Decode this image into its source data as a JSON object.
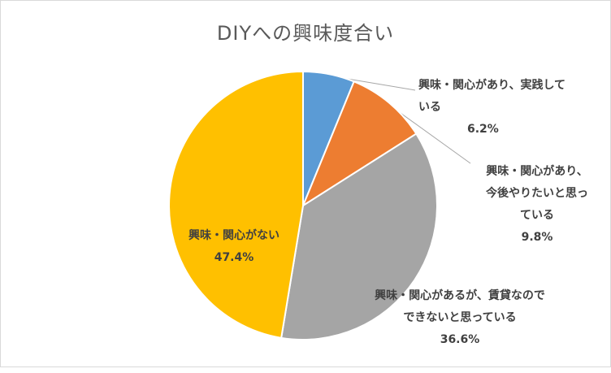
{
  "chart_data": {
    "type": "pie",
    "title": "DIYへの興味度合い",
    "slices": [
      {
        "label": "興味・関心があり、実践している",
        "value": 6.2,
        "display": "6.2%",
        "color": "#5b9bd5"
      },
      {
        "label": "興味・関心があり、今後やりたいと思っている",
        "value": 9.8,
        "display": "9.8%",
        "color": "#ed7d31"
      },
      {
        "label": "興味・関心があるが、賃貸なのでできないと思っている",
        "value": 36.6,
        "display": "36.6%",
        "color": "#a5a5a5"
      },
      {
        "label": "興味・関心がない",
        "value": 47.4,
        "display": "47.4%",
        "color": "#ffc000"
      }
    ]
  },
  "labels": {
    "s0": {
      "text": "興味・関心があり、実践して\nいる",
      "pct": "6.2%"
    },
    "s1": {
      "text": "興味・関心があり、\n今後やりたいと思っ\nている",
      "pct": "9.8%"
    },
    "s2": {
      "text": "興味・関心があるが、賃貸なので\nできないと思っている",
      "pct": "36.6%"
    },
    "s3": {
      "text": "興味・関心がない",
      "pct": "47.4%"
    }
  }
}
